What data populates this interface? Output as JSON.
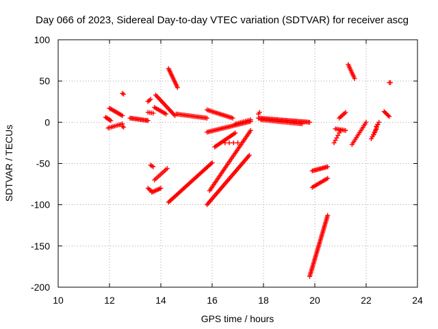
{
  "chart_data": {
    "type": "scatter",
    "title": "Day 066 of 2023, Sidereal Day-to-day VTEC variation (SDTVAR) for receiver ascg",
    "xlabel": "GPS time / hours",
    "ylabel": "SDTVAR / TECUs",
    "xlim": [
      10,
      24
    ],
    "ylim": [
      -200,
      100
    ],
    "xticks": [
      10,
      12,
      14,
      16,
      18,
      20,
      22,
      24
    ],
    "yticks": [
      -200,
      -150,
      -100,
      -50,
      0,
      50,
      100
    ],
    "grid": true,
    "marker": "+",
    "color": "#ff0000",
    "tracks": [
      {
        "x0": 11.85,
        "y0": 6,
        "x1": 12.05,
        "y1": 2,
        "n": 6
      },
      {
        "x0": 11.95,
        "y0": -7,
        "x1": 12.5,
        "y1": -2,
        "n": 10
      },
      {
        "x0": 12.0,
        "y0": 17,
        "x1": 12.5,
        "y1": 8,
        "n": 12
      },
      {
        "x0": 12.5,
        "y0": 35,
        "x1": 12.55,
        "y1": 34,
        "n": 2
      },
      {
        "x0": 12.5,
        "y0": -5,
        "x1": 12.55,
        "y1": -6,
        "n": 2
      },
      {
        "x0": 12.8,
        "y0": 5,
        "x1": 13.5,
        "y1": 2,
        "n": 16
      },
      {
        "x0": 13.5,
        "y0": 25,
        "x1": 13.6,
        "y1": 28,
        "n": 3
      },
      {
        "x0": 13.5,
        "y0": 12,
        "x1": 13.7,
        "y1": 11,
        "n": 4
      },
      {
        "x0": 13.5,
        "y0": -80,
        "x1": 13.65,
        "y1": -84,
        "n": 4
      },
      {
        "x0": 13.6,
        "y0": -52,
        "x1": 13.7,
        "y1": -54,
        "n": 3
      },
      {
        "x0": 13.65,
        "y0": -85,
        "x1": 14.0,
        "y1": -80,
        "n": 8
      },
      {
        "x0": 13.75,
        "y0": -70,
        "x1": 14.25,
        "y1": -56,
        "n": 10
      },
      {
        "x0": 13.75,
        "y0": 18,
        "x1": 14.2,
        "y1": 10,
        "n": 10
      },
      {
        "x0": 13.8,
        "y0": 33,
        "x1": 14.55,
        "y1": 8,
        "n": 18
      },
      {
        "x0": 14.3,
        "y0": 65,
        "x1": 14.65,
        "y1": 42,
        "n": 14
      },
      {
        "x0": 14.3,
        "y0": -97,
        "x1": 16.0,
        "y1": -49,
        "n": 40
      },
      {
        "x0": 14.6,
        "y0": 10,
        "x1": 15.8,
        "y1": 5,
        "n": 24
      },
      {
        "x0": 15.8,
        "y0": -100,
        "x1": 17.45,
        "y1": -40,
        "n": 40
      },
      {
        "x0": 15.8,
        "y0": 15,
        "x1": 16.8,
        "y1": 5,
        "n": 20
      },
      {
        "x0": 15.8,
        "y0": -12,
        "x1": 17.5,
        "y1": 1,
        "n": 34
      },
      {
        "x0": 15.9,
        "y0": -83,
        "x1": 17.5,
        "y1": -10,
        "n": 40
      },
      {
        "x0": 16.1,
        "y0": -30,
        "x1": 16.9,
        "y1": -13,
        "n": 18
      },
      {
        "x0": 16.5,
        "y0": -25,
        "x1": 17.0,
        "y1": -25,
        "n": 4
      },
      {
        "x0": 16.9,
        "y0": -2,
        "x1": 17.5,
        "y1": 3,
        "n": 10
      },
      {
        "x0": 17.8,
        "y0": 10,
        "x1": 17.85,
        "y1": 12,
        "n": 2
      },
      {
        "x0": 17.8,
        "y0": 5,
        "x1": 19.8,
        "y1": 0,
        "n": 44
      },
      {
        "x0": 17.9,
        "y0": 3,
        "x1": 19.5,
        "y1": -2,
        "n": 30
      },
      {
        "x0": 19.8,
        "y0": -187,
        "x1": 20.5,
        "y1": -113,
        "n": 44
      },
      {
        "x0": 19.9,
        "y0": -79,
        "x1": 20.5,
        "y1": -68,
        "n": 12
      },
      {
        "x0": 19.9,
        "y0": -59,
        "x1": 20.5,
        "y1": -54,
        "n": 14
      },
      {
        "x0": 20.75,
        "y0": -25,
        "x1": 21.0,
        "y1": -10,
        "n": 6
      },
      {
        "x0": 20.8,
        "y0": -8,
        "x1": 21.2,
        "y1": -10,
        "n": 8
      },
      {
        "x0": 20.95,
        "y0": 5,
        "x1": 21.2,
        "y1": 12,
        "n": 6
      },
      {
        "x0": 21.3,
        "y0": 70,
        "x1": 21.55,
        "y1": 53,
        "n": 10
      },
      {
        "x0": 21.45,
        "y0": -27,
        "x1": 22.0,
        "y1": 0,
        "n": 14
      },
      {
        "x0": 22.2,
        "y0": -20,
        "x1": 22.4,
        "y1": -8,
        "n": 6
      },
      {
        "x0": 22.3,
        "y0": -15,
        "x1": 22.45,
        "y1": -3,
        "n": 5
      },
      {
        "x0": 22.4,
        "y0": -5,
        "x1": 22.5,
        "y1": 0,
        "n": 3
      },
      {
        "x0": 22.7,
        "y0": 13,
        "x1": 22.9,
        "y1": 7,
        "n": 6
      },
      {
        "x0": 22.9,
        "y0": 48,
        "x1": 22.95,
        "y1": 48,
        "n": 2
      }
    ]
  }
}
